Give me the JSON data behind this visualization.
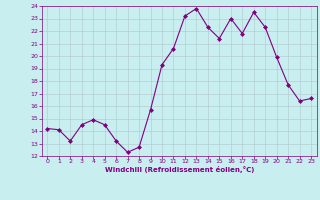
{
  "x": [
    0,
    1,
    2,
    3,
    4,
    5,
    6,
    7,
    8,
    9,
    10,
    11,
    12,
    13,
    14,
    15,
    16,
    17,
    18,
    19,
    20,
    21,
    22,
    23
  ],
  "y": [
    14.2,
    14.1,
    13.2,
    14.5,
    14.9,
    14.5,
    13.2,
    12.3,
    12.7,
    15.7,
    19.3,
    20.6,
    23.2,
    23.8,
    22.3,
    21.4,
    23.0,
    21.8,
    23.5,
    22.3,
    19.9,
    17.7,
    16.4,
    16.6
  ],
  "line_color": "#800080",
  "marker": "D",
  "marker_size": 2,
  "bg_color": "#c8eef0",
  "grid_color": "#b0c8cc",
  "xlabel": "Windchill (Refroidissement éolien,°C)",
  "xlabel_color": "#800080",
  "tick_color": "#800080",
  "ylim": [
    12,
    24
  ],
  "xlim": [
    -0.5,
    23.5
  ],
  "yticks": [
    12,
    13,
    14,
    15,
    16,
    17,
    18,
    19,
    20,
    21,
    22,
    23,
    24
  ],
  "xticks": [
    0,
    1,
    2,
    3,
    4,
    5,
    6,
    7,
    8,
    9,
    10,
    11,
    12,
    13,
    14,
    15,
    16,
    17,
    18,
    19,
    20,
    21,
    22,
    23
  ]
}
